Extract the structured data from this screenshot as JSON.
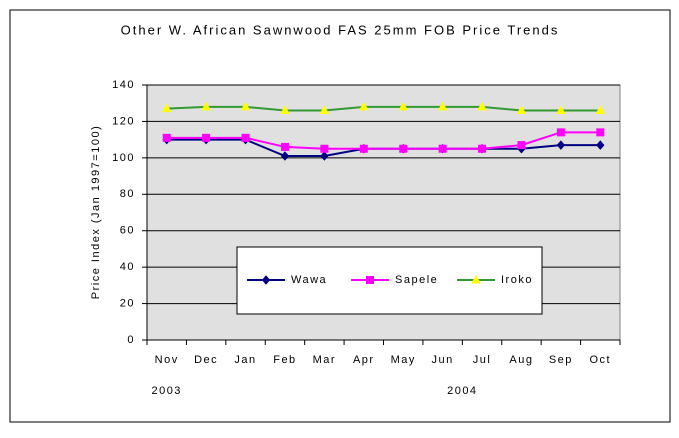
{
  "chart_data": {
    "type": "line",
    "title": "Other W. African Sawnwood FAS 25mm FOB Price Trends",
    "y_label": "Price Index (Jan 1997=100)",
    "categories": [
      "Nov",
      "Dec",
      "Jan",
      "Feb",
      "Mar",
      "Apr",
      "May",
      "Jun",
      "Jul",
      "Aug",
      "Sep",
      "Oct"
    ],
    "year_labels": [
      "2003",
      "2004"
    ],
    "series": [
      {
        "name": "Wawa",
        "color": "#000080",
        "marker": "diamond",
        "values": [
          110,
          110,
          110,
          101,
          101,
          105,
          105,
          105,
          105,
          105,
          107,
          107
        ]
      },
      {
        "name": "Sapele",
        "color": "#ff00ff",
        "marker": "square",
        "values": [
          111,
          111,
          111,
          106,
          105,
          105,
          105,
          105,
          105,
          107,
          114,
          114
        ]
      },
      {
        "name": "Iroko",
        "color": "#ffff00",
        "line_color": "#339933",
        "marker": "triangle",
        "values": [
          127,
          128,
          128,
          126,
          126,
          128,
          128,
          128,
          128,
          126,
          126,
          126
        ]
      }
    ],
    "ylim": [
      0,
      140
    ],
    "yticks": [
      0,
      20,
      40,
      60,
      80,
      100,
      120,
      140
    ],
    "grid": true
  }
}
